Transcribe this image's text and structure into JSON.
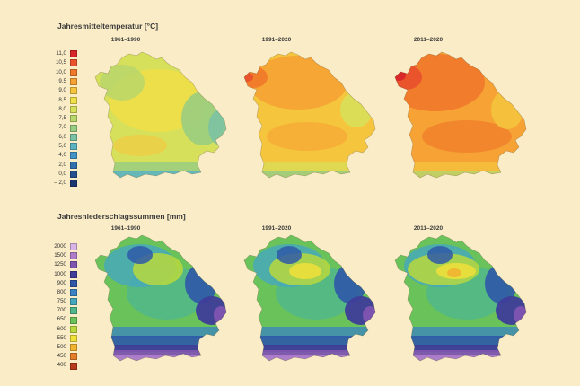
{
  "temperature": {
    "title": "Jahresmitteltemperatur [°C]",
    "periods": [
      "1961–1990",
      "1991–2020",
      "2011–2020"
    ],
    "legend": [
      {
        "label": "11,0",
        "color": "#d8262a"
      },
      {
        "label": "10,5",
        "color": "#e9522c"
      },
      {
        "label": "10,0",
        "color": "#f07a2b"
      },
      {
        "label": "9,5",
        "color": "#f6a234"
      },
      {
        "label": "9,0",
        "color": "#f5c63d"
      },
      {
        "label": "8,5",
        "color": "#efdf48"
      },
      {
        "label": "8,0",
        "color": "#d6e05a"
      },
      {
        "label": "7,5",
        "color": "#b7d66c"
      },
      {
        "label": "7,0",
        "color": "#96cc83"
      },
      {
        "label": "6,0",
        "color": "#79c2a4"
      },
      {
        "label": "5,0",
        "color": "#5bb3c2"
      },
      {
        "label": "4,0",
        "color": "#4394c6"
      },
      {
        "label": "2,0",
        "color": "#2f6fae"
      },
      {
        "label": "0,0",
        "color": "#254f8f"
      },
      {
        "label": "– 2,0",
        "color": "#1b3670"
      }
    ]
  },
  "precipitation": {
    "title": "Jahresniederschlagssummen [mm]",
    "periods": [
      "1961–1990",
      "1991–2020",
      "2011–2020"
    ],
    "legend": [
      {
        "label": "2000",
        "color": "#d9b4e6"
      },
      {
        "label": "1500",
        "color": "#b07ccc"
      },
      {
        "label": "1250",
        "color": "#7f55b0"
      },
      {
        "label": "1000",
        "color": "#3f3d99"
      },
      {
        "label": "900",
        "color": "#2f59a8"
      },
      {
        "label": "800",
        "color": "#3b83c2"
      },
      {
        "label": "750",
        "color": "#45a7be"
      },
      {
        "label": "700",
        "color": "#4fb68c"
      },
      {
        "label": "650",
        "color": "#6ac25a"
      },
      {
        "label": "600",
        "color": "#b8d83e"
      },
      {
        "label": "550",
        "color": "#f0e03a"
      },
      {
        "label": "500",
        "color": "#f1b431"
      },
      {
        "label": "450",
        "color": "#e37d2a"
      },
      {
        "label": "400",
        "color": "#b73a1c"
      }
    ]
  }
}
